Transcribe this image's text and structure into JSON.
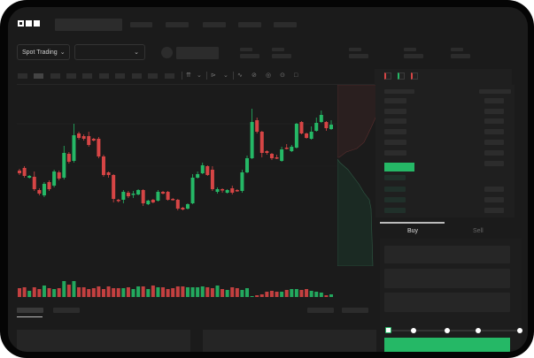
{
  "header": {
    "logo_text": "OKX"
  },
  "market": {
    "mode_select": "Spot Trading",
    "pair_select": ""
  },
  "order_form": {
    "tabs": [
      {
        "label": "Buy",
        "active": true
      },
      {
        "label": "Sell",
        "active": false
      }
    ],
    "slider_percent": 0
  },
  "colors": {
    "up": "#25b866",
    "down": "#d64545",
    "background": "#1b1b1b",
    "frame": "#050505"
  },
  "chart_data": {
    "type": "candlestick",
    "candles": [
      [
        65,
        62,
        67,
        60
      ],
      [
        68,
        59,
        70,
        57
      ],
      [
        57,
        59,
        60,
        56
      ],
      [
        58,
        44,
        64,
        42
      ],
      [
        43,
        39,
        45,
        37
      ],
      [
        37,
        50,
        52,
        35
      ],
      [
        52,
        44,
        54,
        42
      ],
      [
        48,
        64,
        66,
        46
      ],
      [
        63,
        56,
        65,
        54
      ],
      [
        57,
        85,
        93,
        55
      ],
      [
        84,
        75,
        86,
        73
      ],
      [
        76,
        105,
        118,
        74
      ],
      [
        107,
        102,
        109,
        100
      ],
      [
        104,
        101,
        106,
        99
      ],
      [
        104,
        94,
        109,
        92
      ],
      [
        101,
        99,
        102,
        98
      ],
      [
        101,
        81,
        103,
        79
      ],
      [
        81,
        60,
        83,
        58
      ],
      [
        63,
        60,
        64,
        57
      ],
      [
        60,
        33,
        61,
        29
      ],
      [
        32,
        31,
        33,
        29
      ],
      [
        32,
        41,
        43,
        28
      ],
      [
        40,
        36,
        42,
        34
      ],
      [
        38,
        39,
        42,
        34
      ],
      [
        38,
        43,
        44,
        37
      ],
      [
        43,
        28,
        44,
        25
      ],
      [
        27,
        31,
        32,
        26
      ],
      [
        32,
        29,
        33,
        28
      ],
      [
        31,
        41,
        43,
        30
      ],
      [
        41,
        39,
        42,
        38
      ],
      [
        41,
        32,
        42,
        31
      ],
      [
        33,
        32,
        34,
        31
      ],
      [
        32,
        22,
        33,
        20
      ],
      [
        23,
        21,
        24,
        20
      ],
      [
        22,
        27,
        28,
        21
      ],
      [
        28,
        57,
        61,
        27
      ],
      [
        57,
        61,
        64,
        56
      ],
      [
        62,
        71,
        74,
        61
      ],
      [
        70,
        60,
        71,
        59
      ],
      [
        66,
        44,
        70,
        42
      ],
      [
        41,
        44,
        46,
        39
      ],
      [
        44,
        43,
        45,
        40
      ],
      [
        40,
        43,
        44,
        39
      ],
      [
        45,
        40,
        48,
        38
      ],
      [
        43,
        42,
        44,
        41
      ],
      [
        42,
        63,
        66,
        40
      ],
      [
        63,
        79,
        82,
        62
      ],
      [
        79,
        120,
        135,
        78
      ],
      [
        122,
        109,
        125,
        107
      ],
      [
        109,
        85,
        110,
        80
      ],
      [
        87,
        85,
        88,
        83
      ],
      [
        84,
        79,
        85,
        77
      ],
      [
        80,
        79,
        83,
        78
      ],
      [
        76,
        89,
        92,
        75
      ],
      [
        91,
        90,
        95,
        89
      ],
      [
        87,
        92,
        94,
        86
      ],
      [
        91,
        118,
        119,
        90
      ],
      [
        120,
        107,
        121,
        106
      ],
      [
        107,
        102,
        108,
        101
      ],
      [
        101,
        109,
        115,
        100
      ],
      [
        110,
        119,
        125,
        109
      ],
      [
        120,
        128,
        133,
        119
      ],
      [
        120,
        113,
        121,
        110
      ],
      [
        112,
        117,
        122,
        111
      ]
    ],
    "volumes": [
      10,
      11,
      7,
      11,
      9,
      13,
      10,
      9,
      10,
      18,
      14,
      18,
      11,
      11,
      9,
      10,
      12,
      9,
      12,
      10,
      10,
      10,
      11,
      9,
      12,
      12,
      9,
      13,
      11,
      11,
      9,
      10,
      12,
      12,
      11,
      11,
      11,
      12,
      11,
      10,
      13,
      9,
      8,
      11,
      10,
      8,
      10,
      1,
      2,
      3,
      6,
      7,
      6,
      6,
      8,
      9,
      9,
      8,
      9,
      7,
      6,
      5,
      2,
      3
    ]
  }
}
